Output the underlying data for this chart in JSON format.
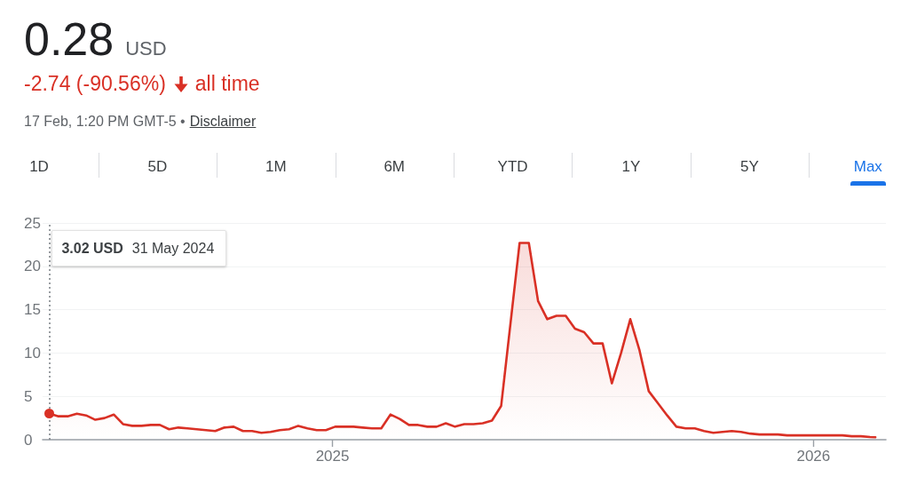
{
  "chart_data": {
    "type": "area",
    "title": "0.28",
    "subtitle": "-2.74 (-90.56%)",
    "annotations": [
      "USD",
      "all time",
      "17 Feb, 1:20 PM GMT-5 •",
      "Disclaimer",
      "1D",
      "5D",
      "1M",
      "6M",
      "YTD",
      "1Y",
      "5Y",
      "Max",
      "3.02 USD",
      "31 May 2024"
    ],
    "x": [
      "2024-05-31",
      "2024-06-07",
      "2024-06-14",
      "2024-06-21",
      "2024-06-28",
      "2024-07-05",
      "2024-07-12",
      "2024-07-19",
      "2024-07-26",
      "2024-08-02",
      "2024-08-09",
      "2024-08-16",
      "2024-08-23",
      "2024-08-30",
      "2024-09-06",
      "2024-09-13",
      "2024-09-20",
      "2024-09-27",
      "2024-10-04",
      "2024-10-11",
      "2024-10-18",
      "2024-10-25",
      "2024-11-01",
      "2024-11-08",
      "2024-11-15",
      "2024-11-22",
      "2024-11-29",
      "2024-12-06",
      "2024-12-13",
      "2024-12-20",
      "2024-12-27",
      "2025-01-03",
      "2025-01-10",
      "2025-01-17",
      "2025-01-24",
      "2025-01-31",
      "2025-02-07",
      "2025-02-14",
      "2025-02-21",
      "2025-02-28",
      "2025-03-07",
      "2025-03-14",
      "2025-03-21",
      "2025-03-28",
      "2025-04-04",
      "2025-04-11",
      "2025-04-18",
      "2025-04-25",
      "2025-05-02",
      "2025-05-09",
      "2025-05-23",
      "2025-05-30",
      "2025-06-06",
      "2025-06-13",
      "2025-06-20",
      "2025-06-27",
      "2025-07-04",
      "2025-07-11",
      "2025-07-18",
      "2025-07-25",
      "2025-08-01",
      "2025-08-08",
      "2025-08-15",
      "2025-08-22",
      "2025-08-29",
      "2025-09-05",
      "2025-09-12",
      "2025-09-19",
      "2025-09-26",
      "2025-10-03",
      "2025-10-10",
      "2025-10-17",
      "2025-10-24",
      "2025-10-31",
      "2025-11-07",
      "2025-11-14",
      "2025-11-21",
      "2025-11-28",
      "2025-12-05",
      "2025-12-12",
      "2025-12-19",
      "2025-12-26",
      "2026-01-02",
      "2026-01-09",
      "2026-01-16",
      "2026-01-23",
      "2026-01-30",
      "2026-02-06",
      "2026-02-13",
      "2026-02-17"
    ],
    "values": [
      3.02,
      2.7,
      2.7,
      3.0,
      2.8,
      2.3,
      2.5,
      2.9,
      1.8,
      1.6,
      1.6,
      1.7,
      1.7,
      1.2,
      1.4,
      1.3,
      1.2,
      1.1,
      1.0,
      1.4,
      1.5,
      1.0,
      1.0,
      0.8,
      0.9,
      1.1,
      1.2,
      1.6,
      1.3,
      1.1,
      1.1,
      1.5,
      1.5,
      1.5,
      1.4,
      1.3,
      1.3,
      2.9,
      2.4,
      1.7,
      1.7,
      1.5,
      1.5,
      1.9,
      1.5,
      1.8,
      1.8,
      1.9,
      2.2,
      3.9,
      22.7,
      22.7,
      16,
      13.9,
      14.3,
      14.3,
      12.8,
      12.4,
      11.1,
      11.1,
      6.5,
      10.0,
      13.9,
      10.3,
      5.6,
      4.2,
      2.8,
      1.5,
      1.3,
      1.3,
      1.0,
      0.8,
      0.9,
      1.0,
      0.9,
      0.7,
      0.6,
      0.6,
      0.6,
      0.5,
      0.5,
      0.5,
      0.5,
      0.5,
      0.5,
      0.5,
      0.4,
      0.4,
      0.3,
      0.28
    ],
    "color": "#d93025",
    "xlim": [
      "2024-05-26",
      "2026-02-25"
    ],
    "xticks": [
      {
        "value": "2025-01-01",
        "label": "2025"
      },
      {
        "value": "2026-01-01",
        "label": "2026"
      }
    ],
    "ylim": [
      0,
      25
    ],
    "yticks": [
      0,
      5,
      10,
      15,
      20,
      25
    ],
    "grid": "y",
    "ref_lines": [
      {
        "axis": "x",
        "value": "2024-05-31",
        "color": "#80868b",
        "line_style": "dotted"
      }
    ]
  }
}
